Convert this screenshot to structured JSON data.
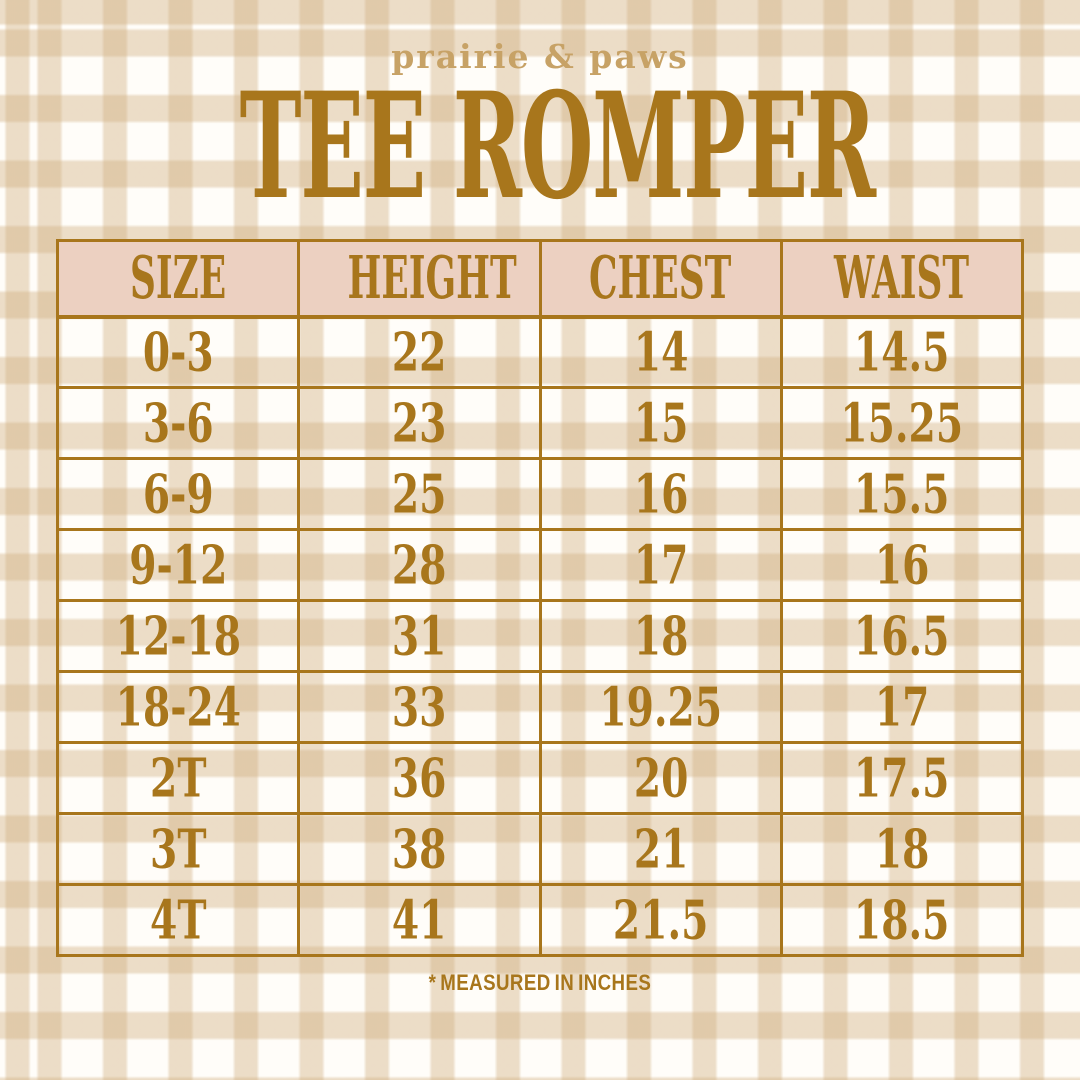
{
  "brand": "prairie & paws",
  "footnote": "* MEASURED IN INCHES",
  "colors": {
    "gold_text": "#a8761c",
    "brand_tan": "#c7a266",
    "header_row_bg": "#ecd0c1",
    "table_border": "#a8761c",
    "gingham_stripe": "#ecdeca",
    "gingham_overlap": "#e1cbac",
    "background": "#fffdf9"
  },
  "chart_data": {
    "type": "table",
    "title": "TEE ROMPER",
    "unit_note": "measured in inches",
    "columns": [
      "SIZE",
      "HEIGHT",
      "CHEST",
      "WAIST"
    ],
    "rows": [
      [
        "0-3",
        "22",
        "14",
        "14.5"
      ],
      [
        "3-6",
        "23",
        "15",
        "15.25"
      ],
      [
        "6-9",
        "25",
        "16",
        "15.5"
      ],
      [
        "9-12",
        "28",
        "17",
        "16"
      ],
      [
        "12-18",
        "31",
        "18",
        "16.5"
      ],
      [
        "18-24",
        "33",
        "19.25",
        "17"
      ],
      [
        "2T",
        "36",
        "20",
        "17.5"
      ],
      [
        "3T",
        "38",
        "21",
        "18"
      ],
      [
        "4T",
        "41",
        "21.5",
        "18.5"
      ]
    ]
  }
}
